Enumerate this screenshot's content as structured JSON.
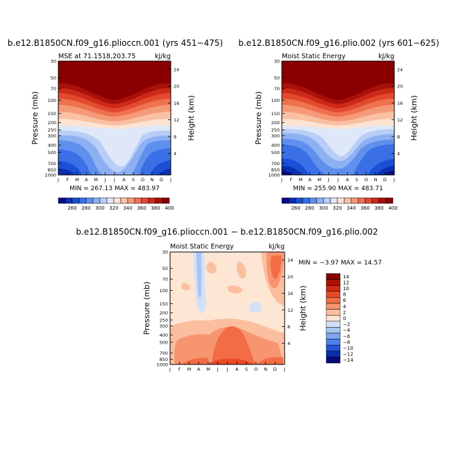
{
  "chart_data": [
    {
      "type": "contour",
      "title": "b.e12.B1850CN.f09_g16.plioccn.001 (yrs 451−475)",
      "left_label": "MSE at 71.1518,203.75",
      "right_label": "kJ/kg",
      "ylabel": "Pressure (mb)",
      "ylabel_right": "Height (km)",
      "x_ticks": [
        "J",
        "F",
        "M",
        "A",
        "M",
        "J",
        "J",
        "A",
        "S",
        "O",
        "N",
        "D",
        "J"
      ],
      "y_ticks": [
        "30",
        "50",
        "70",
        "100",
        "150",
        "200",
        "250",
        "300",
        "400",
        "500",
        "700",
        "850",
        "1000"
      ],
      "height_ticks": [
        "24",
        "20",
        "16",
        "12",
        "8",
        "4"
      ],
      "stats": "MIN = 267.13 MAX = 483.97",
      "legend_labels": [
        "260",
        "280",
        "300",
        "320",
        "340",
        "360",
        "380",
        "400"
      ]
    },
    {
      "type": "contour",
      "title": "b.e12.B1850CN.f09_g16.plio.002 (yrs 601−625)",
      "left_label": "Moist Static Energy",
      "right_label": "kJ/kg",
      "ylabel": "Pressure (mb)",
      "ylabel_right": "Height (km)",
      "x_ticks": [
        "J",
        "F",
        "M",
        "A",
        "M",
        "J",
        "J",
        "A",
        "S",
        "O",
        "N",
        "D",
        "J"
      ],
      "y_ticks": [
        "30",
        "50",
        "70",
        "100",
        "150",
        "200",
        "250",
        "300",
        "400",
        "500",
        "700",
        "850",
        "1000"
      ],
      "height_ticks": [
        "24",
        "20",
        "16",
        "12",
        "8",
        "4"
      ],
      "stats": "MIN = 255.90 MAX = 483.71",
      "legend_labels": [
        "260",
        "280",
        "300",
        "320",
        "340",
        "360",
        "380",
        "400"
      ]
    },
    {
      "type": "contour",
      "title": "b.e12.B1850CN.f09_g16.plioccn.001 − b.e12.B1850CN.f09_g16.plio.002",
      "left_label": "Moist Static Energy",
      "right_label": "kJ/kg",
      "ylabel": "Pressure (mb)",
      "ylabel_right": "Height (km)",
      "x_ticks": [
        "J",
        "F",
        "M",
        "A",
        "M",
        "J",
        "J",
        "A",
        "S",
        "O",
        "N",
        "D",
        "J"
      ],
      "y_ticks": [
        "30",
        "50",
        "70",
        "100",
        "150",
        "200",
        "250",
        "300",
        "400",
        "500",
        "700",
        "850",
        "1000"
      ],
      "height_ticks": [
        "24",
        "20",
        "16",
        "12",
        "8",
        "4"
      ],
      "stats": "MIN =   −3.97 MAX =   14.57",
      "legend_labels": [
        "14",
        "12",
        "10",
        "8",
        "6",
        "4",
        "2",
        "0",
        "−2",
        "−4",
        "−6",
        "−8",
        "−10",
        "−12",
        "−14"
      ]
    }
  ],
  "colors": {
    "mse_scale": [
      "#08088a",
      "#0b2fb0",
      "#1a4fd6",
      "#3a6fe6",
      "#6090ee",
      "#8db0f2",
      "#b8cef6",
      "#dfe8f8",
      "#fde3d3",
      "#f9c0a4",
      "#f59a78",
      "#ee7150",
      "#e24a2e",
      "#cc2a18",
      "#a8110a",
      "#8a0000"
    ],
    "diff_scale": [
      "#8a0000",
      "#b01005",
      "#d02a12",
      "#ea4a26",
      "#f26d45",
      "#f79570",
      "#fbbfa0",
      "#fde6d3",
      "#d3e1f8",
      "#a9c6f3",
      "#7ea6ef",
      "#4f7fea",
      "#2455d8",
      "#0a2ea6",
      "#070a7a"
    ]
  }
}
